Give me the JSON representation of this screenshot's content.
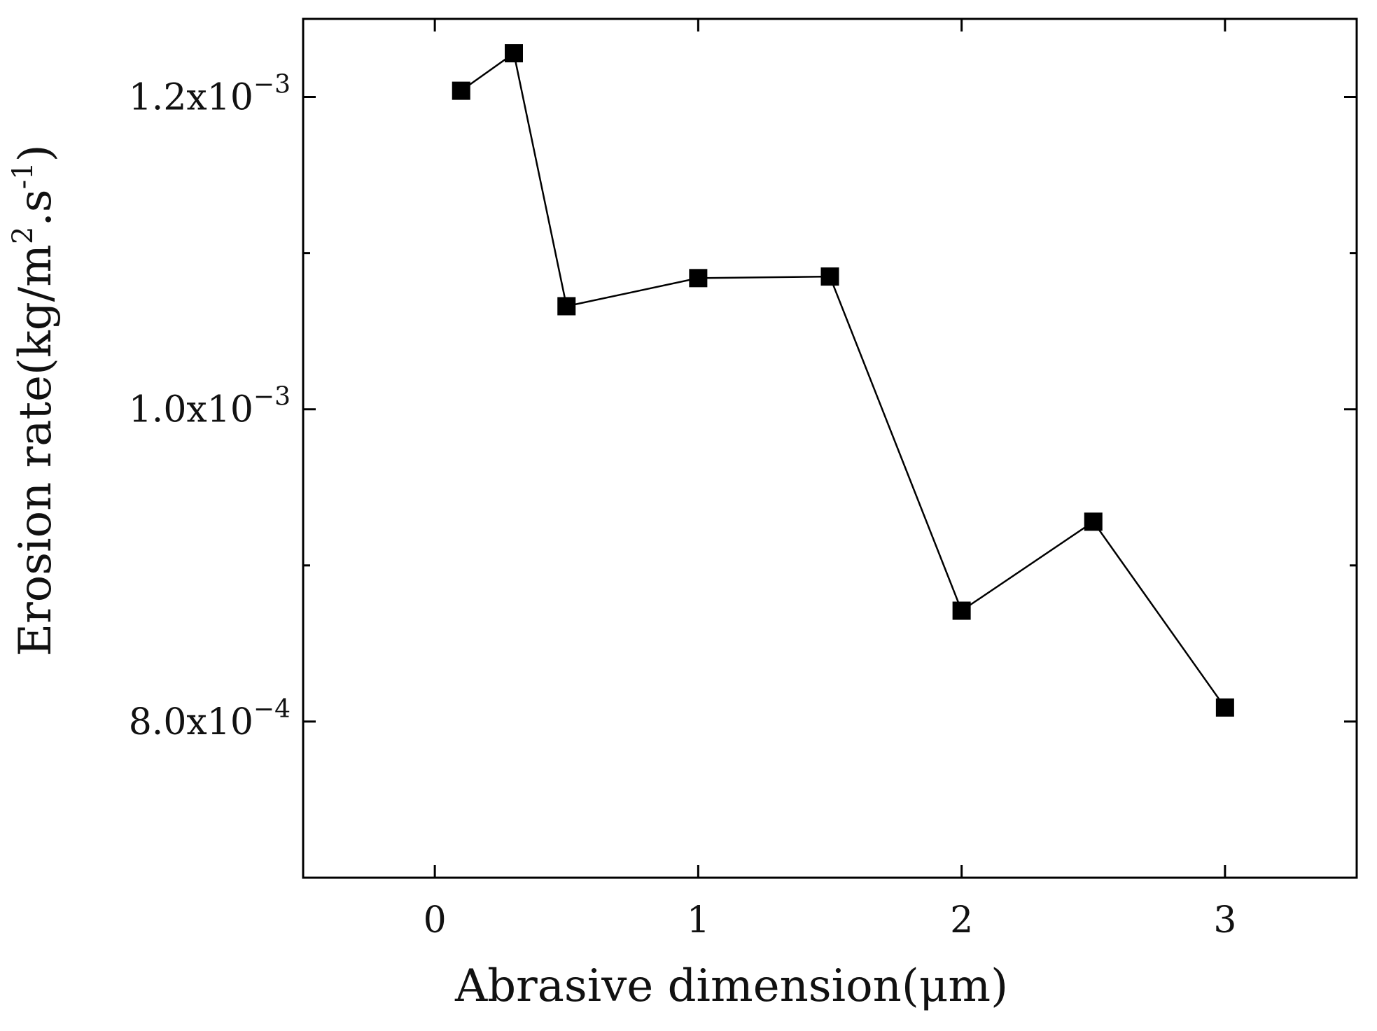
{
  "chart_data": {
    "type": "line",
    "title": "",
    "xlabel": "Abrasive dimension(μm)",
    "ylabel": {
      "main": "Erosion rate(kg/m",
      "sup1": "2",
      "mid": ".s",
      "sup2": "-1",
      "end": ")"
    },
    "xlim": [
      -0.5,
      3.5
    ],
    "ylim": [
      0.0007,
      0.00125
    ],
    "grid": false,
    "legend": "none",
    "x_ticks": [
      {
        "value": 0,
        "label": "0"
      },
      {
        "value": 1,
        "label": "1"
      },
      {
        "value": 2,
        "label": "2"
      },
      {
        "value": 3,
        "label": "3"
      }
    ],
    "y_ticks": [
      {
        "value": 0.0008,
        "mantissa": "8.0x10",
        "exponent": "−4"
      },
      {
        "value": 0.001,
        "mantissa": "1.0x10",
        "exponent": "−3"
      },
      {
        "value": 0.0012,
        "mantissa": "1.2x10",
        "exponent": "−3"
      }
    ],
    "series": [
      {
        "name": "Erosion rate",
        "marker": "square",
        "color": "#000000",
        "x": [
          0.1,
          0.3,
          0.5,
          1.0,
          1.5,
          2.0,
          2.5,
          3.0
        ],
        "y": [
          0.001204,
          0.001228,
          0.001066,
          0.001084,
          0.001085,
          0.000871,
          0.000928,
          0.000809
        ]
      }
    ]
  }
}
